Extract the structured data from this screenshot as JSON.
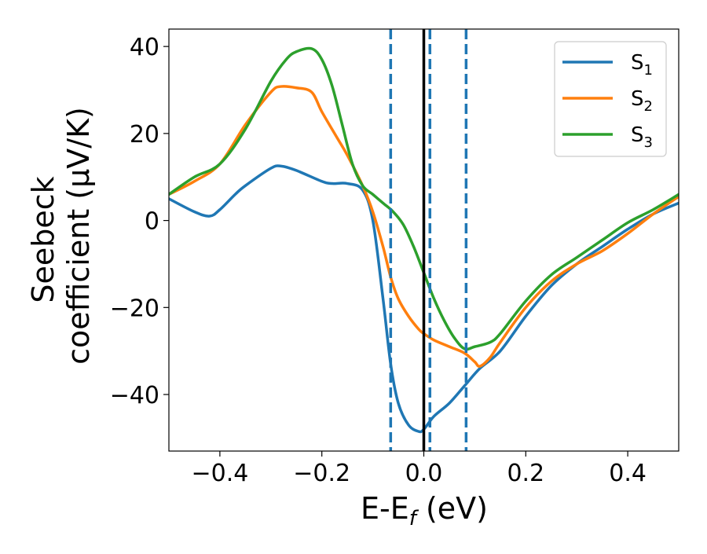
{
  "chart_data": {
    "type": "line",
    "xlabel_main": "E-E",
    "xlabel_sub": "f",
    "xlabel_unit": " (eV)",
    "ylabel_line1": "Seebeck",
    "ylabel_line2": "coefficient  (μV/K)",
    "xlim": [
      -0.5,
      0.5
    ],
    "ylim": [
      -53,
      44
    ],
    "xticks": [
      -0.4,
      -0.2,
      0.0,
      0.2,
      0.4
    ],
    "xtick_labels": [
      "−0.4",
      "−0.2",
      "0.0",
      "0.2",
      "0.4"
    ],
    "yticks": [
      -40,
      -20,
      0,
      20,
      40
    ],
    "ytick_labels": [
      "−40",
      "−20",
      "0",
      "20",
      "40"
    ],
    "grid": false,
    "legend_position": "top-right",
    "vertical_lines": [
      {
        "x": 0.0,
        "style": "solid",
        "color": "#000000"
      },
      {
        "x": -0.065,
        "style": "dashed",
        "color": "#1f77b4"
      },
      {
        "x": 0.012,
        "style": "dashed",
        "color": "#1f77b4"
      },
      {
        "x": 0.083,
        "style": "dashed",
        "color": "#1f77b4"
      }
    ],
    "series": [
      {
        "name": "S",
        "sub": "1",
        "color": "#1f77b4",
        "x": [
          -0.5,
          -0.45,
          -0.42,
          -0.4,
          -0.37,
          -0.35,
          -0.3,
          -0.28,
          -0.25,
          -0.2,
          -0.18,
          -0.15,
          -0.12,
          -0.1,
          -0.08,
          -0.065,
          -0.05,
          -0.03,
          -0.01,
          0.0,
          0.02,
          0.05,
          0.08,
          0.11,
          0.15,
          0.2,
          0.25,
          0.3,
          0.35,
          0.4,
          0.45,
          0.5
        ],
        "y": [
          5,
          2,
          1,
          2.5,
          6,
          8,
          12,
          12.5,
          11.5,
          9,
          8.5,
          8.5,
          7,
          0,
          -18,
          -33,
          -42,
          -47,
          -48.5,
          -48,
          -45,
          -42,
          -38,
          -34,
          -30,
          -22,
          -15,
          -10,
          -6,
          -2,
          1.5,
          4
        ]
      },
      {
        "name": "S",
        "sub": "2",
        "color": "#ff7f0e",
        "x": [
          -0.5,
          -0.45,
          -0.4,
          -0.35,
          -0.3,
          -0.28,
          -0.25,
          -0.22,
          -0.2,
          -0.17,
          -0.15,
          -0.12,
          -0.1,
          -0.08,
          -0.065,
          -0.05,
          -0.03,
          -0.01,
          0.0,
          0.02,
          0.05,
          0.08,
          0.1,
          0.11,
          0.13,
          0.15,
          0.2,
          0.25,
          0.3,
          0.35,
          0.4,
          0.45,
          0.5
        ],
        "y": [
          6,
          9,
          13,
          22,
          29.5,
          30.8,
          30.5,
          29.5,
          25,
          19,
          15,
          8,
          2,
          -6,
          -13,
          -18,
          -22,
          -25,
          -26,
          -27.5,
          -29,
          -30.5,
          -32.5,
          -33.5,
          -31.5,
          -28,
          -20,
          -14,
          -10,
          -7,
          -3,
          1.5,
          5.5
        ]
      },
      {
        "name": "S",
        "sub": "3",
        "color": "#2ca02c",
        "x": [
          -0.5,
          -0.45,
          -0.4,
          -0.35,
          -0.3,
          -0.27,
          -0.25,
          -0.22,
          -0.2,
          -0.18,
          -0.16,
          -0.14,
          -0.12,
          -0.1,
          -0.08,
          -0.06,
          -0.04,
          -0.02,
          0.0,
          0.02,
          0.04,
          0.06,
          0.08,
          0.1,
          0.13,
          0.15,
          0.2,
          0.25,
          0.3,
          0.35,
          0.4,
          0.45,
          0.5
        ],
        "y": [
          6,
          10,
          13,
          21,
          32,
          37,
          38.8,
          39.5,
          37,
          31,
          22,
          13,
          8,
          6,
          4,
          2,
          -1,
          -6,
          -12,
          -18,
          -23,
          -27,
          -29.5,
          -29,
          -28,
          -26,
          -18.5,
          -12.5,
          -8.5,
          -4.5,
          -0.5,
          2.5,
          6
        ]
      }
    ]
  }
}
